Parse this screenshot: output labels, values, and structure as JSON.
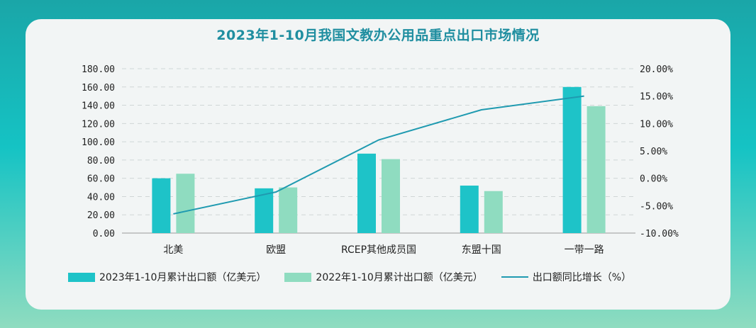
{
  "chart_data": {
    "type": "bar",
    "title": "2023年1-10月我国文教办公用品重点出口市场情况",
    "categories": [
      "北美",
      "欧盟",
      "RCEP其他成员国",
      "东盟十国",
      "一带一路"
    ],
    "series": [
      {
        "name": "2023年1-10月累计出口额（亿美元）",
        "type": "bar",
        "axis": "left",
        "values": [
          60,
          49,
          87,
          52,
          160
        ],
        "color": "#1ec3c8"
      },
      {
        "name": "2022年1-10月累计出口额（亿美元）",
        "type": "bar",
        "axis": "left",
        "values": [
          65,
          50,
          81,
          46,
          139
        ],
        "color": "#8fdcc0"
      },
      {
        "name": "出口额同比增长（%）",
        "type": "line",
        "axis": "right",
        "values": [
          -6.5,
          -2.5,
          7.0,
          12.5,
          15.0
        ],
        "color": "#1f9ab0"
      }
    ],
    "y_left": {
      "min": 0,
      "max": 180,
      "ticks": [
        "0.00",
        "20.00",
        "40.00",
        "60.00",
        "80.00",
        "100.00",
        "120.00",
        "140.00",
        "160.00",
        "180.00"
      ]
    },
    "y_right": {
      "min": -10,
      "max": 20,
      "ticks": [
        "-10.00%",
        "-5.00%",
        "0.00%",
        "5.00%",
        "10.00%",
        "15.00%",
        "20.00%"
      ]
    },
    "grid": true,
    "legend_position": "bottom"
  }
}
